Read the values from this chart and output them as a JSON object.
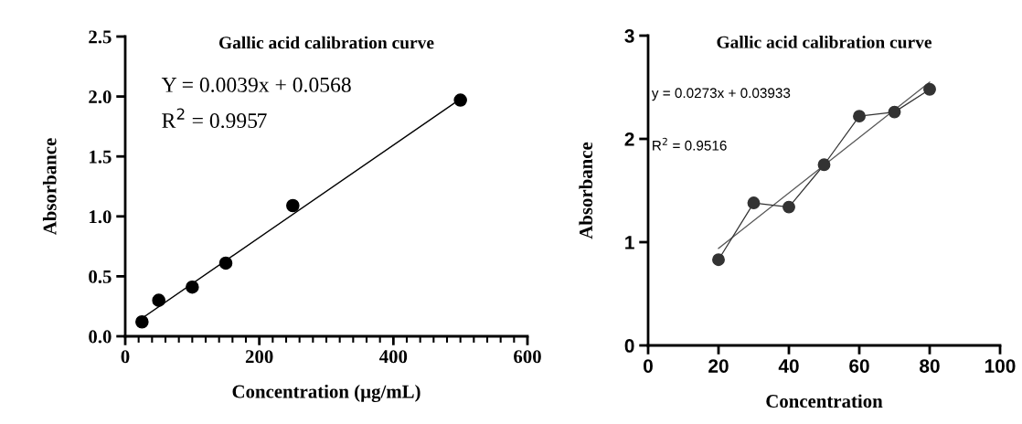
{
  "chart_data": [
    {
      "type": "scatter",
      "title": "Gallic acid calibration curve",
      "xlabel": "Concentration (µg/mL)",
      "ylabel": "Absorbance",
      "series": [
        {
          "color": "#000000",
          "marker": "circle",
          "x": [
            25,
            50,
            100,
            150,
            250,
            500
          ],
          "values": [
            0.12,
            0.3,
            0.41,
            0.61,
            1.09,
            1.97
          ]
        },
        {
          "type": "line",
          "color": "#000000",
          "marker": "none",
          "x": [
            25,
            500
          ],
          "values": [
            0.15,
            1.98
          ]
        }
      ],
      "annotations": [
        "Y = 0.0039x + 0.0568",
        "R$^{2}$ = 0.9957"
      ],
      "xlim": [
        0,
        600
      ],
      "ylim": [
        0,
        2.5
      ],
      "xticks": [
        0,
        {
          "value": 20,
          "label": null
        },
        {
          "value": 40,
          "label": null
        },
        {
          "value": 60,
          "label": null
        },
        {
          "value": 80,
          "label": null
        },
        {
          "value": 100,
          "label": null
        },
        {
          "value": 120,
          "label": null
        },
        {
          "value": 140,
          "label": null
        },
        {
          "value": 160,
          "label": null
        },
        {
          "value": 180,
          "label": null
        },
        200,
        {
          "value": 220,
          "label": null
        },
        {
          "value": 240,
          "label": null
        },
        {
          "value": 260,
          "label": null
        },
        {
          "value": 280,
          "label": null
        },
        {
          "value": 300,
          "label": null
        },
        {
          "value": 320,
          "label": null
        },
        {
          "value": 340,
          "label": null
        },
        {
          "value": 360,
          "label": null
        },
        {
          "value": 380,
          "label": null
        },
        400,
        {
          "value": 420,
          "label": null
        },
        {
          "value": 440,
          "label": null
        },
        {
          "value": 460,
          "label": null
        },
        {
          "value": 480,
          "label": null
        },
        {
          "value": 500,
          "label": null
        },
        {
          "value": 520,
          "label": null
        },
        {
          "value": 540,
          "label": null
        },
        {
          "value": 560,
          "label": null
        },
        {
          "value": 580,
          "label": null
        },
        600
      ],
      "yticks": [
        {
          "value": 0,
          "label": "0.0"
        },
        0.5,
        {
          "value": 1,
          "label": "1.0"
        },
        1.5,
        {
          "value": 2,
          "label": "2.0"
        },
        2.5
      ],
      "grid": false,
      "legend": false
    },
    {
      "type": "line",
      "title": "Gallic acid calibration curve",
      "xlabel": "Concentration",
      "ylabel": "Absorbance",
      "series": [
        {
          "color": "#333333",
          "marker": "circle",
          "x": [
            20,
            30,
            40,
            50,
            60,
            70,
            80
          ],
          "values": [
            0.83,
            1.38,
            1.34,
            1.75,
            2.22,
            2.26,
            2.48
          ]
        },
        {
          "color": "#555555",
          "marker": "none",
          "x": [
            20,
            80
          ],
          "values": [
            0.94,
            2.55
          ]
        }
      ],
      "annotations": [
        "y = 0.0273x + 0.03933",
        "R$^{2}$ = 0.9516"
      ],
      "xlim": [
        0,
        100
      ],
      "ylim": [
        0,
        3
      ],
      "xticks": [
        0,
        20,
        40,
        60,
        80,
        100
      ],
      "yticks": [
        0,
        1,
        2,
        3
      ],
      "grid": false,
      "legend": false
    }
  ]
}
